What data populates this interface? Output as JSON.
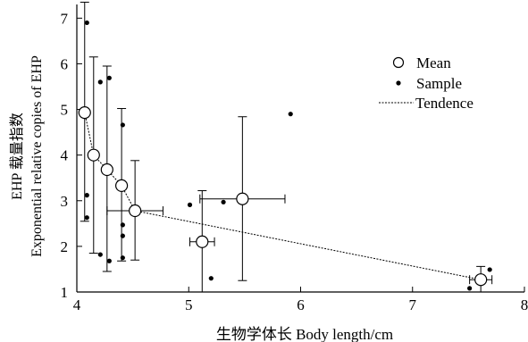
{
  "chart_data": {
    "type": "scatter",
    "title": "",
    "xlabel": "生物学体长 Body length/cm",
    "ylabel_line1": "EHP 载量指数",
    "ylabel_line2": "Exponential relative copies of EHP",
    "xlim": [
      4,
      8
    ],
    "ylim": [
      1,
      7.3
    ],
    "x_ticks": [
      4,
      5,
      6,
      7,
      8
    ],
    "y_ticks": [
      1,
      2,
      3,
      4,
      5,
      6,
      7
    ],
    "x_tick_labels": [
      "4",
      "5",
      "6",
      "7",
      "8"
    ],
    "y_tick_labels": [
      "1",
      "2",
      "3",
      "4",
      "5",
      "6",
      "7"
    ],
    "grid": false,
    "legend_position": "top-right",
    "legend": {
      "mean": "Mean",
      "sample": "Sample",
      "trend": "Tendence"
    },
    "series": [
      {
        "name": "Mean",
        "marker": "open-circle",
        "points": [
          {
            "x": 4.07,
            "y": 4.93,
            "xerr": 0.0,
            "ylow": 2.55,
            "yhigh": 7.35
          },
          {
            "x": 4.15,
            "y": 4.0,
            "xerr": 0.0,
            "ylow": 1.85,
            "yhigh": 6.15
          },
          {
            "x": 4.27,
            "y": 3.68,
            "xerr": 0.0,
            "ylow": 1.45,
            "yhigh": 5.95
          },
          {
            "x": 4.4,
            "y": 3.33,
            "xerr": 0.0,
            "ylow": 1.68,
            "yhigh": 5.02
          },
          {
            "x": 4.52,
            "y": 2.78,
            "xerr": 0.25,
            "ylow": 1.7,
            "yhigh": 3.88
          },
          {
            "x": 5.12,
            "y": 2.1,
            "xerr": 0.11,
            "ylow": 1.0,
            "yhigh": 3.22
          },
          {
            "x": 5.48,
            "y": 3.04,
            "xerr": 0.38,
            "ylow": 1.25,
            "yhigh": 4.84
          },
          {
            "x": 7.61,
            "y": 1.27,
            "xerr": 0.1,
            "ylow": 1.0,
            "yhigh": 1.56
          }
        ]
      },
      {
        "name": "Sample",
        "marker": "dot",
        "points": [
          {
            "x": 4.09,
            "y": 6.9
          },
          {
            "x": 4.09,
            "y": 3.12
          },
          {
            "x": 4.09,
            "y": 2.63
          },
          {
            "x": 4.21,
            "y": 5.6
          },
          {
            "x": 4.21,
            "y": 1.82
          },
          {
            "x": 4.29,
            "y": 5.69
          },
          {
            "x": 4.29,
            "y": 1.68
          },
          {
            "x": 4.41,
            "y": 4.66
          },
          {
            "x": 4.41,
            "y": 2.47
          },
          {
            "x": 4.41,
            "y": 2.23
          },
          {
            "x": 4.41,
            "y": 1.75
          },
          {
            "x": 5.01,
            "y": 2.91
          },
          {
            "x": 5.2,
            "y": 1.3
          },
          {
            "x": 5.31,
            "y": 2.97
          },
          {
            "x": 5.91,
            "y": 4.9
          },
          {
            "x": 7.51,
            "y": 1.08
          },
          {
            "x": 7.69,
            "y": 1.49
          }
        ]
      },
      {
        "name": "Tendence",
        "marker": "dashed-line",
        "points": [
          {
            "x": 4.07,
            "y": 4.93
          },
          {
            "x": 4.15,
            "y": 4.0
          },
          {
            "x": 4.27,
            "y": 3.68
          },
          {
            "x": 4.4,
            "y": 3.33
          },
          {
            "x": 4.52,
            "y": 2.78
          },
          {
            "x": 7.61,
            "y": 1.27
          }
        ]
      }
    ]
  }
}
